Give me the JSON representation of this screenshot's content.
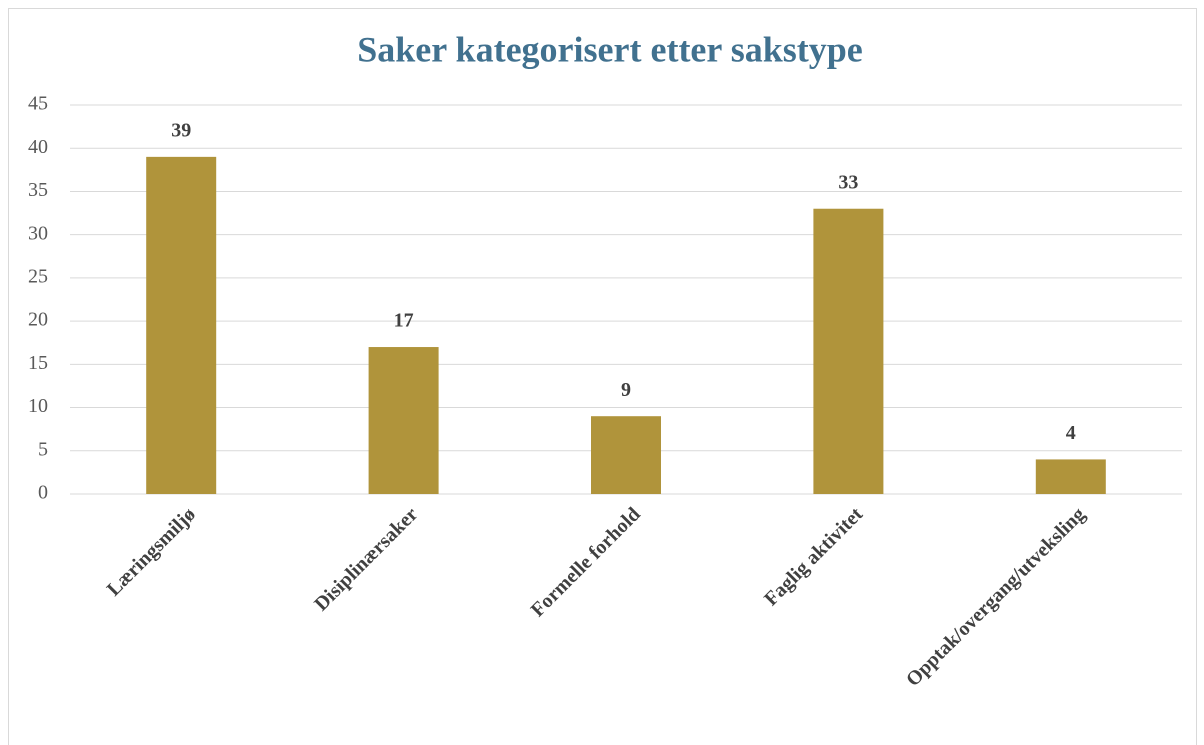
{
  "chart_data": {
    "type": "bar",
    "title": "Saker kategorisert etter sakstype",
    "categories": [
      "Læringsmiljø",
      "Disiplinærsaker",
      "Formelle forhold",
      "Faglig aktivitet",
      "Opptak/overgang/utveksling"
    ],
    "values": [
      39,
      17,
      9,
      33,
      4
    ],
    "color": "#b0943b",
    "ylim": [
      0,
      45
    ],
    "yticks": [
      0,
      5,
      10,
      15,
      20,
      25,
      30,
      35,
      40,
      45
    ],
    "grid": true
  }
}
